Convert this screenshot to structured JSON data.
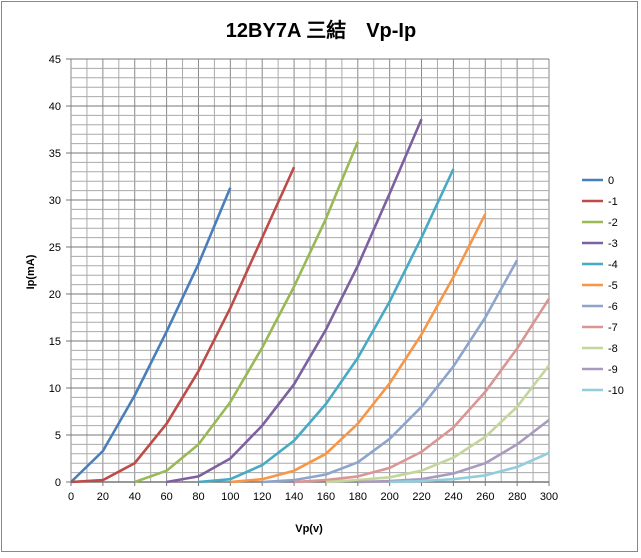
{
  "chart_data": {
    "type": "line",
    "title": "12BY7A 三結　Vp-Ip",
    "xlabel": "Vp(v)",
    "ylabel": "Ip(mA)",
    "xlim": [
      0,
      300
    ],
    "ylim": [
      0,
      45
    ],
    "xticks": [
      0,
      20,
      40,
      60,
      80,
      100,
      120,
      140,
      160,
      180,
      200,
      220,
      240,
      260,
      280,
      300
    ],
    "yticks": [
      0,
      5,
      10,
      15,
      20,
      25,
      30,
      35,
      40,
      45
    ],
    "grid": true,
    "legend_position": "right",
    "series": [
      {
        "name": "0",
        "color": "#4A7EBB",
        "x": [
          0,
          20,
          40,
          60,
          80,
          100
        ],
        "y": [
          0,
          3.3,
          9.2,
          16,
          23.2,
          31.3
        ]
      },
      {
        "name": "-1",
        "color": "#BE4B48",
        "x": [
          0,
          20,
          40,
          60,
          80,
          100,
          120,
          140
        ],
        "y": [
          0,
          0.2,
          2,
          6.2,
          11.8,
          18.5,
          26,
          33.5
        ]
      },
      {
        "name": "-2",
        "color": "#98B954",
        "x": [
          40,
          60,
          80,
          100,
          120,
          140,
          160,
          180
        ],
        "y": [
          0,
          1.2,
          4,
          8.5,
          14.3,
          20.8,
          28,
          36.2
        ]
      },
      {
        "name": "-3",
        "color": "#7D60A0",
        "x": [
          60,
          80,
          100,
          120,
          140,
          160,
          180,
          200,
          220
        ],
        "y": [
          0,
          0.6,
          2.5,
          6,
          10.4,
          16.2,
          23,
          30.7,
          38.6
        ]
      },
      {
        "name": "-4",
        "color": "#46AAC5",
        "x": [
          80,
          100,
          120,
          140,
          160,
          180,
          200,
          220,
          240
        ],
        "y": [
          0,
          0.3,
          1.8,
          4.4,
          8.3,
          13.2,
          19.2,
          26,
          33.3
        ]
      },
      {
        "name": "-5",
        "color": "#F79646",
        "x": [
          100,
          120,
          140,
          160,
          180,
          200,
          220,
          240,
          260
        ],
        "y": [
          0,
          0.3,
          1.2,
          3,
          6.2,
          10.5,
          15.7,
          21.8,
          28.5
        ]
      },
      {
        "name": "-6",
        "color": "#8EA5CB",
        "x": [
          120,
          140,
          160,
          180,
          200,
          220,
          240,
          260,
          280
        ],
        "y": [
          0,
          0.2,
          0.8,
          2.1,
          4.6,
          8,
          12.3,
          17.5,
          23.6
        ]
      },
      {
        "name": "-7",
        "color": "#D99694",
        "x": [
          140,
          160,
          180,
          200,
          220,
          240,
          260,
          280,
          300
        ],
        "y": [
          0,
          0.2,
          0.6,
          1.5,
          3.2,
          5.8,
          9.6,
          14.2,
          19.5
        ]
      },
      {
        "name": "-8",
        "color": "#C3D69B",
        "x": [
          160,
          180,
          200,
          220,
          240,
          260,
          280,
          300
        ],
        "y": [
          0,
          0.2,
          0.5,
          1.2,
          2.6,
          4.8,
          8,
          12.4
        ]
      },
      {
        "name": "-9",
        "color": "#A99BBD",
        "x": [
          180,
          200,
          220,
          240,
          260,
          280,
          300
        ],
        "y": [
          0,
          0.1,
          0.3,
          0.9,
          2,
          4,
          6.6
        ]
      },
      {
        "name": "-10",
        "color": "#93CDDD",
        "x": [
          200,
          220,
          240,
          260,
          280,
          300
        ],
        "y": [
          0,
          0.1,
          0.3,
          0.7,
          1.6,
          3.1
        ]
      }
    ]
  }
}
